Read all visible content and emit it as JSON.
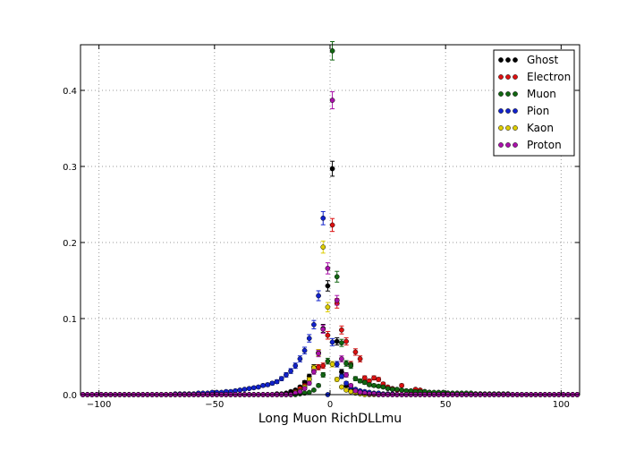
{
  "chart_data": {
    "type": "scatter",
    "title": "",
    "xlabel": "Long Muon RichDLLmu",
    "ylabel": "",
    "xlim": [
      -108,
      108
    ],
    "ylim": [
      0,
      0.46
    ],
    "xticks": [
      -100,
      -50,
      0,
      50,
      100
    ],
    "yticks": [
      0.0,
      0.1,
      0.2,
      0.3,
      0.4
    ],
    "xtick_labels": [
      "−100",
      "−50",
      "0",
      "50",
      "100"
    ],
    "ytick_labels": [
      "0.0",
      "0.1",
      "0.2",
      "0.3",
      "0.4"
    ],
    "grid": true,
    "legend_position": "top-right",
    "bin_width": 2,
    "x_start": -107,
    "x_end": 107,
    "series": [
      {
        "name": "Ghost",
        "color": "#000000",
        "points": [
          [
            -23,
            0.001
          ],
          [
            -21,
            0.001
          ],
          [
            -19,
            0.002
          ],
          [
            -17,
            0.004
          ],
          [
            -15,
            0.006
          ],
          [
            -13,
            0.01
          ],
          [
            -11,
            0.016
          ],
          [
            -9,
            0.024
          ],
          [
            -7,
            0.036
          ],
          [
            -5,
            0.055
          ],
          [
            -3,
            0.087
          ],
          [
            -1,
            0.143
          ],
          [
            1,
            0.297
          ],
          [
            3,
            0.07
          ],
          [
            5,
            0.03
          ],
          [
            7,
            0.012
          ],
          [
            9,
            0.006
          ],
          [
            11,
            0.003
          ],
          [
            13,
            0.002
          ],
          [
            15,
            0.001
          ],
          [
            17,
            0.001
          ],
          [
            19,
            0.001
          ]
        ]
      },
      {
        "name": "Electron",
        "color": "#dd1111",
        "points": [
          [
            -15,
            0.004
          ],
          [
            -13,
            0.008
          ],
          [
            -11,
            0.012
          ],
          [
            -9,
            0.02
          ],
          [
            -7,
            0.032
          ],
          [
            -5,
            0.036
          ],
          [
            -3,
            0.038
          ],
          [
            -1,
            0.078
          ],
          [
            1,
            0.223
          ],
          [
            3,
            0.12
          ],
          [
            5,
            0.085
          ],
          [
            7,
            0.07
          ],
          [
            9,
            0.04
          ],
          [
            11,
            0.056
          ],
          [
            13,
            0.047
          ],
          [
            15,
            0.022
          ],
          [
            17,
            0.018
          ],
          [
            19,
            0.022
          ],
          [
            21,
            0.02
          ],
          [
            23,
            0.014
          ],
          [
            25,
            0.01
          ],
          [
            27,
            0.008
          ],
          [
            29,
            0.006
          ],
          [
            31,
            0.012
          ],
          [
            33,
            0.005
          ],
          [
            35,
            0.004
          ],
          [
            37,
            0.007
          ],
          [
            39,
            0.006
          ],
          [
            41,
            0.004
          ],
          [
            43,
            0.003
          ],
          [
            45,
            0.002
          ],
          [
            47,
            0.002
          ],
          [
            49,
            0.001
          ],
          [
            51,
            0.002
          ],
          [
            53,
            0.001
          ],
          [
            55,
            0.001
          ],
          [
            57,
            0.001
          ],
          [
            59,
            0.001
          ],
          [
            61,
            0.001
          ],
          [
            63,
            0.001
          ],
          [
            65,
            0.001
          ]
        ]
      },
      {
        "name": "Muon",
        "color": "#116611",
        "points": [
          [
            -13,
            0.001
          ],
          [
            -11,
            0.002
          ],
          [
            -9,
            0.003
          ],
          [
            -7,
            0.006
          ],
          [
            -5,
            0.012
          ],
          [
            -3,
            0.026
          ],
          [
            -1,
            0.044
          ],
          [
            1,
            0.452
          ],
          [
            3,
            0.155
          ],
          [
            5,
            0.068
          ],
          [
            7,
            0.041
          ],
          [
            9,
            0.038
          ],
          [
            11,
            0.021
          ],
          [
            13,
            0.018
          ],
          [
            15,
            0.016
          ],
          [
            17,
            0.013
          ],
          [
            19,
            0.012
          ],
          [
            21,
            0.011
          ],
          [
            23,
            0.01
          ],
          [
            25,
            0.008
          ],
          [
            27,
            0.007
          ],
          [
            29,
            0.007
          ],
          [
            31,
            0.006
          ],
          [
            33,
            0.005
          ],
          [
            35,
            0.005
          ],
          [
            37,
            0.004
          ],
          [
            39,
            0.004
          ],
          [
            41,
            0.004
          ],
          [
            43,
            0.003
          ],
          [
            45,
            0.003
          ],
          [
            47,
            0.003
          ],
          [
            49,
            0.003
          ],
          [
            51,
            0.002
          ],
          [
            53,
            0.002
          ],
          [
            55,
            0.002
          ],
          [
            57,
            0.002
          ],
          [
            59,
            0.002
          ],
          [
            61,
            0.002
          ],
          [
            63,
            0.001
          ],
          [
            65,
            0.001
          ],
          [
            67,
            0.001
          ],
          [
            69,
            0.001
          ],
          [
            71,
            0.001
          ],
          [
            73,
            0.001
          ],
          [
            75,
            0.001
          ],
          [
            77,
            0.001
          ]
        ]
      },
      {
        "name": "Pion",
        "color": "#1122cc",
        "points": [
          [
            -67,
            0.001
          ],
          [
            -65,
            0.001
          ],
          [
            -63,
            0.001
          ],
          [
            -61,
            0.001
          ],
          [
            -59,
            0.001
          ],
          [
            -57,
            0.002
          ],
          [
            -55,
            0.002
          ],
          [
            -53,
            0.002
          ],
          [
            -51,
            0.003
          ],
          [
            -49,
            0.003
          ],
          [
            -47,
            0.003
          ],
          [
            -45,
            0.004
          ],
          [
            -43,
            0.004
          ],
          [
            -41,
            0.005
          ],
          [
            -39,
            0.006
          ],
          [
            -37,
            0.007
          ],
          [
            -35,
            0.008
          ],
          [
            -33,
            0.009
          ],
          [
            -31,
            0.01
          ],
          [
            -29,
            0.012
          ],
          [
            -27,
            0.013
          ],
          [
            -25,
            0.015
          ],
          [
            -23,
            0.017
          ],
          [
            -21,
            0.021
          ],
          [
            -19,
            0.026
          ],
          [
            -17,
            0.031
          ],
          [
            -15,
            0.038
          ],
          [
            -13,
            0.047
          ],
          [
            -11,
            0.058
          ],
          [
            -9,
            0.074
          ],
          [
            -7,
            0.092
          ],
          [
            -5,
            0.13
          ],
          [
            -3,
            0.232
          ],
          [
            1,
            0.069
          ],
          [
            3,
            0.04
          ],
          [
            5,
            0.024
          ],
          [
            7,
            0.015
          ],
          [
            9,
            0.01
          ],
          [
            11,
            0.007
          ],
          [
            13,
            0.005
          ],
          [
            15,
            0.004
          ],
          [
            17,
            0.003
          ],
          [
            19,
            0.002
          ],
          [
            21,
            0.002
          ],
          [
            23,
            0.001
          ],
          [
            25,
            0.001
          ],
          [
            27,
            0.001
          ]
        ]
      },
      {
        "name": "Kaon",
        "color": "#ddcc00",
        "points": [
          [
            -15,
            0.003
          ],
          [
            -13,
            0.005
          ],
          [
            -11,
            0.01
          ],
          [
            -9,
            0.02
          ],
          [
            -7,
            0.035
          ],
          [
            -5,
            0.055
          ],
          [
            -3,
            0.194
          ],
          [
            -1,
            0.115
          ],
          [
            1,
            0.04
          ],
          [
            3,
            0.02
          ],
          [
            5,
            0.01
          ],
          [
            7,
            0.006
          ],
          [
            9,
            0.004
          ],
          [
            11,
            0.002
          ],
          [
            13,
            0.001
          ]
        ]
      },
      {
        "name": "Proton",
        "color": "#aa11aa",
        "points": [
          [
            -15,
            0.002
          ],
          [
            -13,
            0.004
          ],
          [
            -11,
            0.008
          ],
          [
            -9,
            0.015
          ],
          [
            -7,
            0.03
          ],
          [
            -5,
            0.054
          ],
          [
            -3,
            0.086
          ],
          [
            -1,
            0.166
          ],
          [
            1,
            0.387
          ],
          [
            3,
            0.124
          ],
          [
            5,
            0.047
          ],
          [
            7,
            0.026
          ],
          [
            9,
            0.012
          ],
          [
            11,
            0.005
          ],
          [
            13,
            0.003
          ],
          [
            15,
            0.002
          ],
          [
            17,
            0.001
          ],
          [
            19,
            0.001
          ]
        ]
      }
    ]
  }
}
